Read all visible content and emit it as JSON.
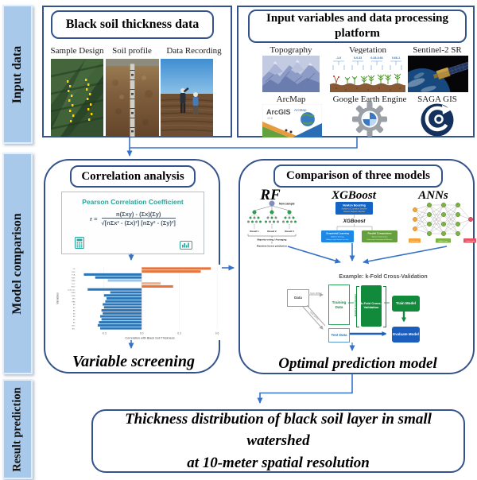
{
  "sidebar": {
    "items": [
      {
        "label": "Input data"
      },
      {
        "label": "Model comparison"
      },
      {
        "label": "Result prediction"
      }
    ]
  },
  "top_left": {
    "title": "Black soil thickness data",
    "items": [
      {
        "label": "Sample Design"
      },
      {
        "label": "Soil profile"
      },
      {
        "label": "Data Recording"
      }
    ]
  },
  "top_right": {
    "title": "Input variables and data processing platform",
    "row1": [
      {
        "label": "Topography"
      },
      {
        "label": "Vegetation"
      },
      {
        "label": "Sentinel-2 SR"
      }
    ],
    "row2": [
      {
        "label": "ArcMap"
      },
      {
        "label": "Google Earth Engine"
      },
      {
        "label": "SAGA GIS"
      }
    ],
    "vegetation_ranges": [
      "-1-0",
      "0-0.33",
      "0.33-0.66",
      "0.66-1"
    ],
    "arcgis_text": "ArcGIS",
    "arcmap_small": "ArcMap",
    "arcgis_version": "10.8"
  },
  "correlation": {
    "title": "Correlation analysis",
    "pearson_title": "Pearson Correlation Coefficient",
    "formula_r": "r  =",
    "formula_num": "n(Σxy) - (Σx)(Σy)",
    "formula_den": "√[nΣx² - (Σx)²] [nΣy² - (Σy)²]",
    "caption": "Variable screening"
  },
  "chart_data": {
    "type": "bar",
    "orientation": "horizontal",
    "xlabel": "Correlation with Black Soil Thickness",
    "ylabel": "Variables",
    "xlim": [
      -0.52,
      0.65
    ],
    "xticks": [
      -0.3,
      0.0,
      0.3,
      0.6
    ],
    "grid": true,
    "series": [
      {
        "name": "VD",
        "value": 0.55,
        "color": "#E8743B"
      },
      {
        "name": "TCW",
        "value": 0.47,
        "color": "#E8743B"
      },
      {
        "name": "TCA",
        "value": -0.46,
        "color": "#2E75B6"
      },
      {
        "name": "RSP",
        "value": -0.37,
        "color": "#2E75B6"
      },
      {
        "name": "VRM",
        "value": -0.27,
        "color": "#9DC3E6"
      },
      {
        "name": "PLC",
        "value": 0.15,
        "color": "#F4B183"
      },
      {
        "name": "ROV",
        "value": 0.25,
        "color": "#E8743B"
      },
      {
        "name": "LS-Factor",
        "value": -0.43,
        "color": "#2E75B6"
      },
      {
        "name": "DEM",
        "value": -0.25,
        "color": "#2E75B6"
      },
      {
        "name": "CND",
        "value": -0.3,
        "color": "#2E75B6"
      },
      {
        "name": "BSI",
        "value": -0.28,
        "color": "#2E75B6"
      },
      {
        "name": "B8A",
        "value": -0.29,
        "color": "#2E75B6"
      },
      {
        "name": "B8",
        "value": -0.31,
        "color": "#2E75B6"
      },
      {
        "name": "B7",
        "value": -0.3,
        "color": "#2E75B6"
      },
      {
        "name": "B6",
        "value": -0.32,
        "color": "#2E75B6"
      },
      {
        "name": "B5",
        "value": -0.31,
        "color": "#2E75B6"
      },
      {
        "name": "B4",
        "value": -0.33,
        "color": "#2E75B6"
      },
      {
        "name": "B3",
        "value": -0.32,
        "color": "#2E75B6"
      },
      {
        "name": "B2",
        "value": -0.34,
        "color": "#2E75B6"
      },
      {
        "name": "B12",
        "value": -0.35,
        "color": "#2E75B6"
      },
      {
        "name": "B11",
        "value": -0.33,
        "color": "#2E75B6"
      }
    ]
  },
  "models": {
    "title": "Comparison of three models",
    "rf": {
      "title": "RF",
      "new_sample": "New sample",
      "results": [
        "Result 1",
        "Result 2",
        "Result 3"
      ],
      "voting": "Majority voting / Averaging",
      "prediction": "Random forest prediction"
    },
    "xgboost": {
      "title": "XGBoost",
      "box1_title": "Newton Boosting",
      "box1_sub1": "Gradient & Curvature Descent",
      "box1_sub2": "Newton Raphson Method",
      "mid_label": "XGBoost",
      "box2_title": "Sequential Learning",
      "box2_sub1": "Additive Strategy",
      "box2_sub2": "Adding a weak learner at a time",
      "box3_title": "Parallel Computation",
      "box3_sub1": "System Optimization",
      "box3_sub2": "Enhancing Computational Efficiency"
    },
    "anns": {
      "title": "ANNs",
      "legend": [
        "Input Layer",
        "Hidden Layer",
        "Output Layer"
      ]
    },
    "kfold": {
      "title": "Example: k-Fold Cross-Validation",
      "data_label": "Data",
      "split1": "Split (80%)",
      "split2": "Split (20%)",
      "training": "Training Data",
      "test": "Test Data",
      "random_assignment": "Random Assignment",
      "kfold_box": "k-Fold Cross-Validation",
      "train_model": "Train Model",
      "evaluate_model": "Evaluate Model"
    },
    "caption": "Optimal prediction model"
  },
  "result": {
    "line1": "Thickness distribution of black soil layer in small watershed",
    "line2": "at 10-meter spatial resolution"
  },
  "colors": {
    "arrow_blue": "#3672C8",
    "box_border": "#34538C",
    "sidebar_bg": "#A9C9EA",
    "bar_orange": "#E8743B",
    "bar_blue": "#2E75B6",
    "bar_light_blue": "#9DC3E6",
    "bar_light_orange": "#F4B183",
    "kfold_green": "#118A3C",
    "kfold_blue": "#1B5EBE",
    "pearson_teal": "#26A69A"
  }
}
